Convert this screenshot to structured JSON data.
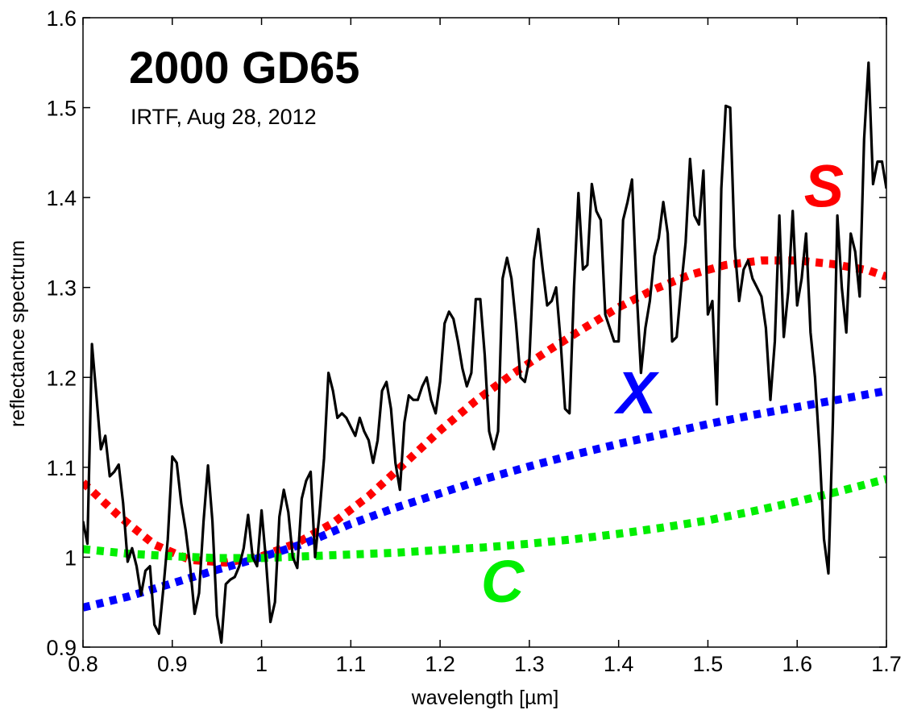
{
  "chart_data": {
    "type": "line",
    "title": "2000 GD65",
    "subtitle": "IRTF, Aug 28, 2012",
    "xlabel": "wavelength [µm]",
    "ylabel": "reflectance spectrum",
    "xlim": [
      0.8,
      1.7
    ],
    "ylim": [
      0.9,
      1.6
    ],
    "xticks": [
      0.8,
      0.9,
      1.0,
      1.1,
      1.2,
      1.3,
      1.4,
      1.5,
      1.6,
      1.7
    ],
    "xtick_labels": [
      "0.8",
      "0.9",
      "1",
      "1.1",
      "1.2",
      "1.3",
      "1.4",
      "1.5",
      "1.6",
      "1.7"
    ],
    "yticks": [
      0.9,
      1.0,
      1.1,
      1.2,
      1.3,
      1.4,
      1.5,
      1.6
    ],
    "ytick_labels": [
      "0.9",
      "1",
      "1.1",
      "1.2",
      "1.3",
      "1.4",
      "1.5",
      "1.6"
    ],
    "grid": false,
    "legend": "none",
    "spectrum": {
      "color": "#000000",
      "x": [
        0.8,
        0.805,
        0.81,
        0.815,
        0.82,
        0.825,
        0.83,
        0.835,
        0.84,
        0.845,
        0.85,
        0.855,
        0.86,
        0.865,
        0.87,
        0.875,
        0.88,
        0.885,
        0.89,
        0.895,
        0.9,
        0.905,
        0.91,
        0.915,
        0.92,
        0.925,
        0.93,
        0.935,
        0.94,
        0.945,
        0.95,
        0.955,
        0.96,
        0.965,
        0.97,
        0.975,
        0.98,
        0.985,
        0.99,
        0.995,
        1.0,
        1.005,
        1.01,
        1.015,
        1.02,
        1.025,
        1.03,
        1.035,
        1.04,
        1.045,
        1.05,
        1.055,
        1.06,
        1.065,
        1.07,
        1.075,
        1.08,
        1.085,
        1.09,
        1.095,
        1.1,
        1.105,
        1.11,
        1.115,
        1.12,
        1.125,
        1.13,
        1.135,
        1.14,
        1.145,
        1.15,
        1.155,
        1.16,
        1.165,
        1.17,
        1.175,
        1.18,
        1.185,
        1.19,
        1.195,
        1.2,
        1.205,
        1.21,
        1.215,
        1.22,
        1.225,
        1.23,
        1.235,
        1.24,
        1.245,
        1.25,
        1.255,
        1.26,
        1.265,
        1.27,
        1.275,
        1.28,
        1.285,
        1.29,
        1.295,
        1.3,
        1.305,
        1.31,
        1.315,
        1.32,
        1.325,
        1.33,
        1.335,
        1.34,
        1.345,
        1.35,
        1.355,
        1.36,
        1.365,
        1.37,
        1.375,
        1.38,
        1.385,
        1.39,
        1.395,
        1.4,
        1.405,
        1.41,
        1.415,
        1.42,
        1.425,
        1.43,
        1.435,
        1.44,
        1.445,
        1.45,
        1.455,
        1.46,
        1.465,
        1.47,
        1.475,
        1.48,
        1.485,
        1.49,
        1.495,
        1.5,
        1.505,
        1.51,
        1.515,
        1.52,
        1.525,
        1.53,
        1.535,
        1.54,
        1.545,
        1.55,
        1.555,
        1.56,
        1.565,
        1.57,
        1.575,
        1.58,
        1.585,
        1.59,
        1.595,
        1.6,
        1.605,
        1.61,
        1.615,
        1.62,
        1.625,
        1.63,
        1.635,
        1.64,
        1.645,
        1.65,
        1.655,
        1.66,
        1.665,
        1.67,
        1.675,
        1.68,
        1.685,
        1.69,
        1.695,
        1.7
      ],
      "y": [
        1.04,
        1.015,
        1.237,
        1.18,
        1.12,
        1.135,
        1.09,
        1.095,
        1.103,
        1.06,
        0.995,
        1.01,
        0.99,
        0.958,
        0.985,
        0.99,
        0.925,
        0.915,
        0.965,
        1.02,
        1.112,
        1.105,
        1.06,
        1.03,
        0.99,
        0.937,
        0.96,
        1.04,
        1.102,
        1.04,
        0.935,
        0.905,
        0.97,
        0.975,
        0.978,
        0.99,
        1.01,
        1.047,
        1.0,
        0.99,
        1.052,
        0.996,
        0.928,
        0.95,
        1.045,
        1.075,
        1.05,
        1.0,
        0.988,
        1.065,
        1.085,
        1.095,
        1.0,
        1.05,
        1.11,
        1.205,
        1.185,
        1.155,
        1.16,
        1.155,
        1.145,
        1.135,
        1.155,
        1.14,
        1.13,
        1.105,
        1.13,
        1.185,
        1.195,
        1.165,
        1.105,
        1.075,
        1.15,
        1.18,
        1.175,
        1.175,
        1.19,
        1.2,
        1.175,
        1.16,
        1.195,
        1.26,
        1.273,
        1.265,
        1.24,
        1.21,
        1.19,
        1.205,
        1.287,
        1.287,
        1.225,
        1.14,
        1.12,
        1.14,
        1.31,
        1.333,
        1.31,
        1.26,
        1.2,
        1.195,
        1.22,
        1.33,
        1.365,
        1.32,
        1.28,
        1.285,
        1.3,
        1.24,
        1.165,
        1.16,
        1.3,
        1.405,
        1.32,
        1.325,
        1.415,
        1.385,
        1.375,
        1.27,
        1.255,
        1.24,
        1.24,
        1.375,
        1.395,
        1.42,
        1.3,
        1.205,
        1.255,
        1.285,
        1.335,
        1.355,
        1.395,
        1.36,
        1.24,
        1.245,
        1.3,
        1.35,
        1.443,
        1.38,
        1.37,
        1.43,
        1.27,
        1.285,
        1.17,
        1.41,
        1.502,
        1.5,
        1.345,
        1.285,
        1.32,
        1.33,
        1.31,
        1.3,
        1.29,
        1.255,
        1.175,
        1.24,
        1.38,
        1.245,
        1.295,
        1.385,
        1.28,
        1.31,
        1.36,
        1.25,
        1.2,
        1.12,
        1.02,
        0.982,
        1.15,
        1.38,
        1.3,
        1.25,
        1.36,
        1.34,
        1.29,
        1.465,
        1.55,
        1.415,
        1.44,
        1.44,
        1.41
      ]
    },
    "series": [
      {
        "name": "S",
        "color": "#ff0000",
        "x": [
          0.8,
          0.84,
          0.88,
          0.92,
          0.96,
          1.0,
          1.04,
          1.08,
          1.12,
          1.16,
          1.2,
          1.24,
          1.28,
          1.32,
          1.36,
          1.4,
          1.44,
          1.48,
          1.52,
          1.56,
          1.6,
          1.64,
          1.68,
          1.7
        ],
        "y": [
          1.083,
          1.046,
          1.014,
          0.997,
          0.994,
          1.001,
          1.016,
          1.038,
          1.068,
          1.104,
          1.141,
          1.174,
          1.203,
          1.229,
          1.254,
          1.278,
          1.298,
          1.314,
          1.325,
          1.33,
          1.33,
          1.326,
          1.319,
          1.312
        ]
      },
      {
        "name": "X",
        "color": "#0000ff",
        "x": [
          0.8,
          0.85,
          0.9,
          0.95,
          1.0,
          1.05,
          1.1,
          1.15,
          1.2,
          1.25,
          1.3,
          1.35,
          1.4,
          1.45,
          1.5,
          1.55,
          1.6,
          1.65,
          1.7
        ],
        "y": [
          0.944,
          0.956,
          0.971,
          0.986,
          1.0,
          1.016,
          1.037,
          1.055,
          1.071,
          1.087,
          1.101,
          1.114,
          1.126,
          1.137,
          1.148,
          1.158,
          1.167,
          1.176,
          1.185
        ]
      },
      {
        "name": "C",
        "color": "#00ee00",
        "x": [
          0.8,
          0.85,
          0.9,
          0.95,
          1.0,
          1.05,
          1.1,
          1.15,
          1.2,
          1.25,
          1.3,
          1.35,
          1.4,
          1.45,
          1.5,
          1.55,
          1.6,
          1.65,
          1.7
        ],
        "y": [
          1.009,
          1.004,
          1.001,
          0.999,
          0.999,
          1.001,
          1.003,
          1.005,
          1.008,
          1.011,
          1.015,
          1.02,
          1.026,
          1.033,
          1.041,
          1.051,
          1.062,
          1.074,
          1.087
        ]
      }
    ],
    "annotations": [
      {
        "text": "S",
        "x": 1.63,
        "y": 1.39,
        "color": "#ff0000"
      },
      {
        "text": "X",
        "x": 1.42,
        "y": 1.16,
        "color": "#0000ff"
      },
      {
        "text": "C",
        "x": 1.27,
        "y": 0.95,
        "color": "#00ee00"
      }
    ]
  }
}
